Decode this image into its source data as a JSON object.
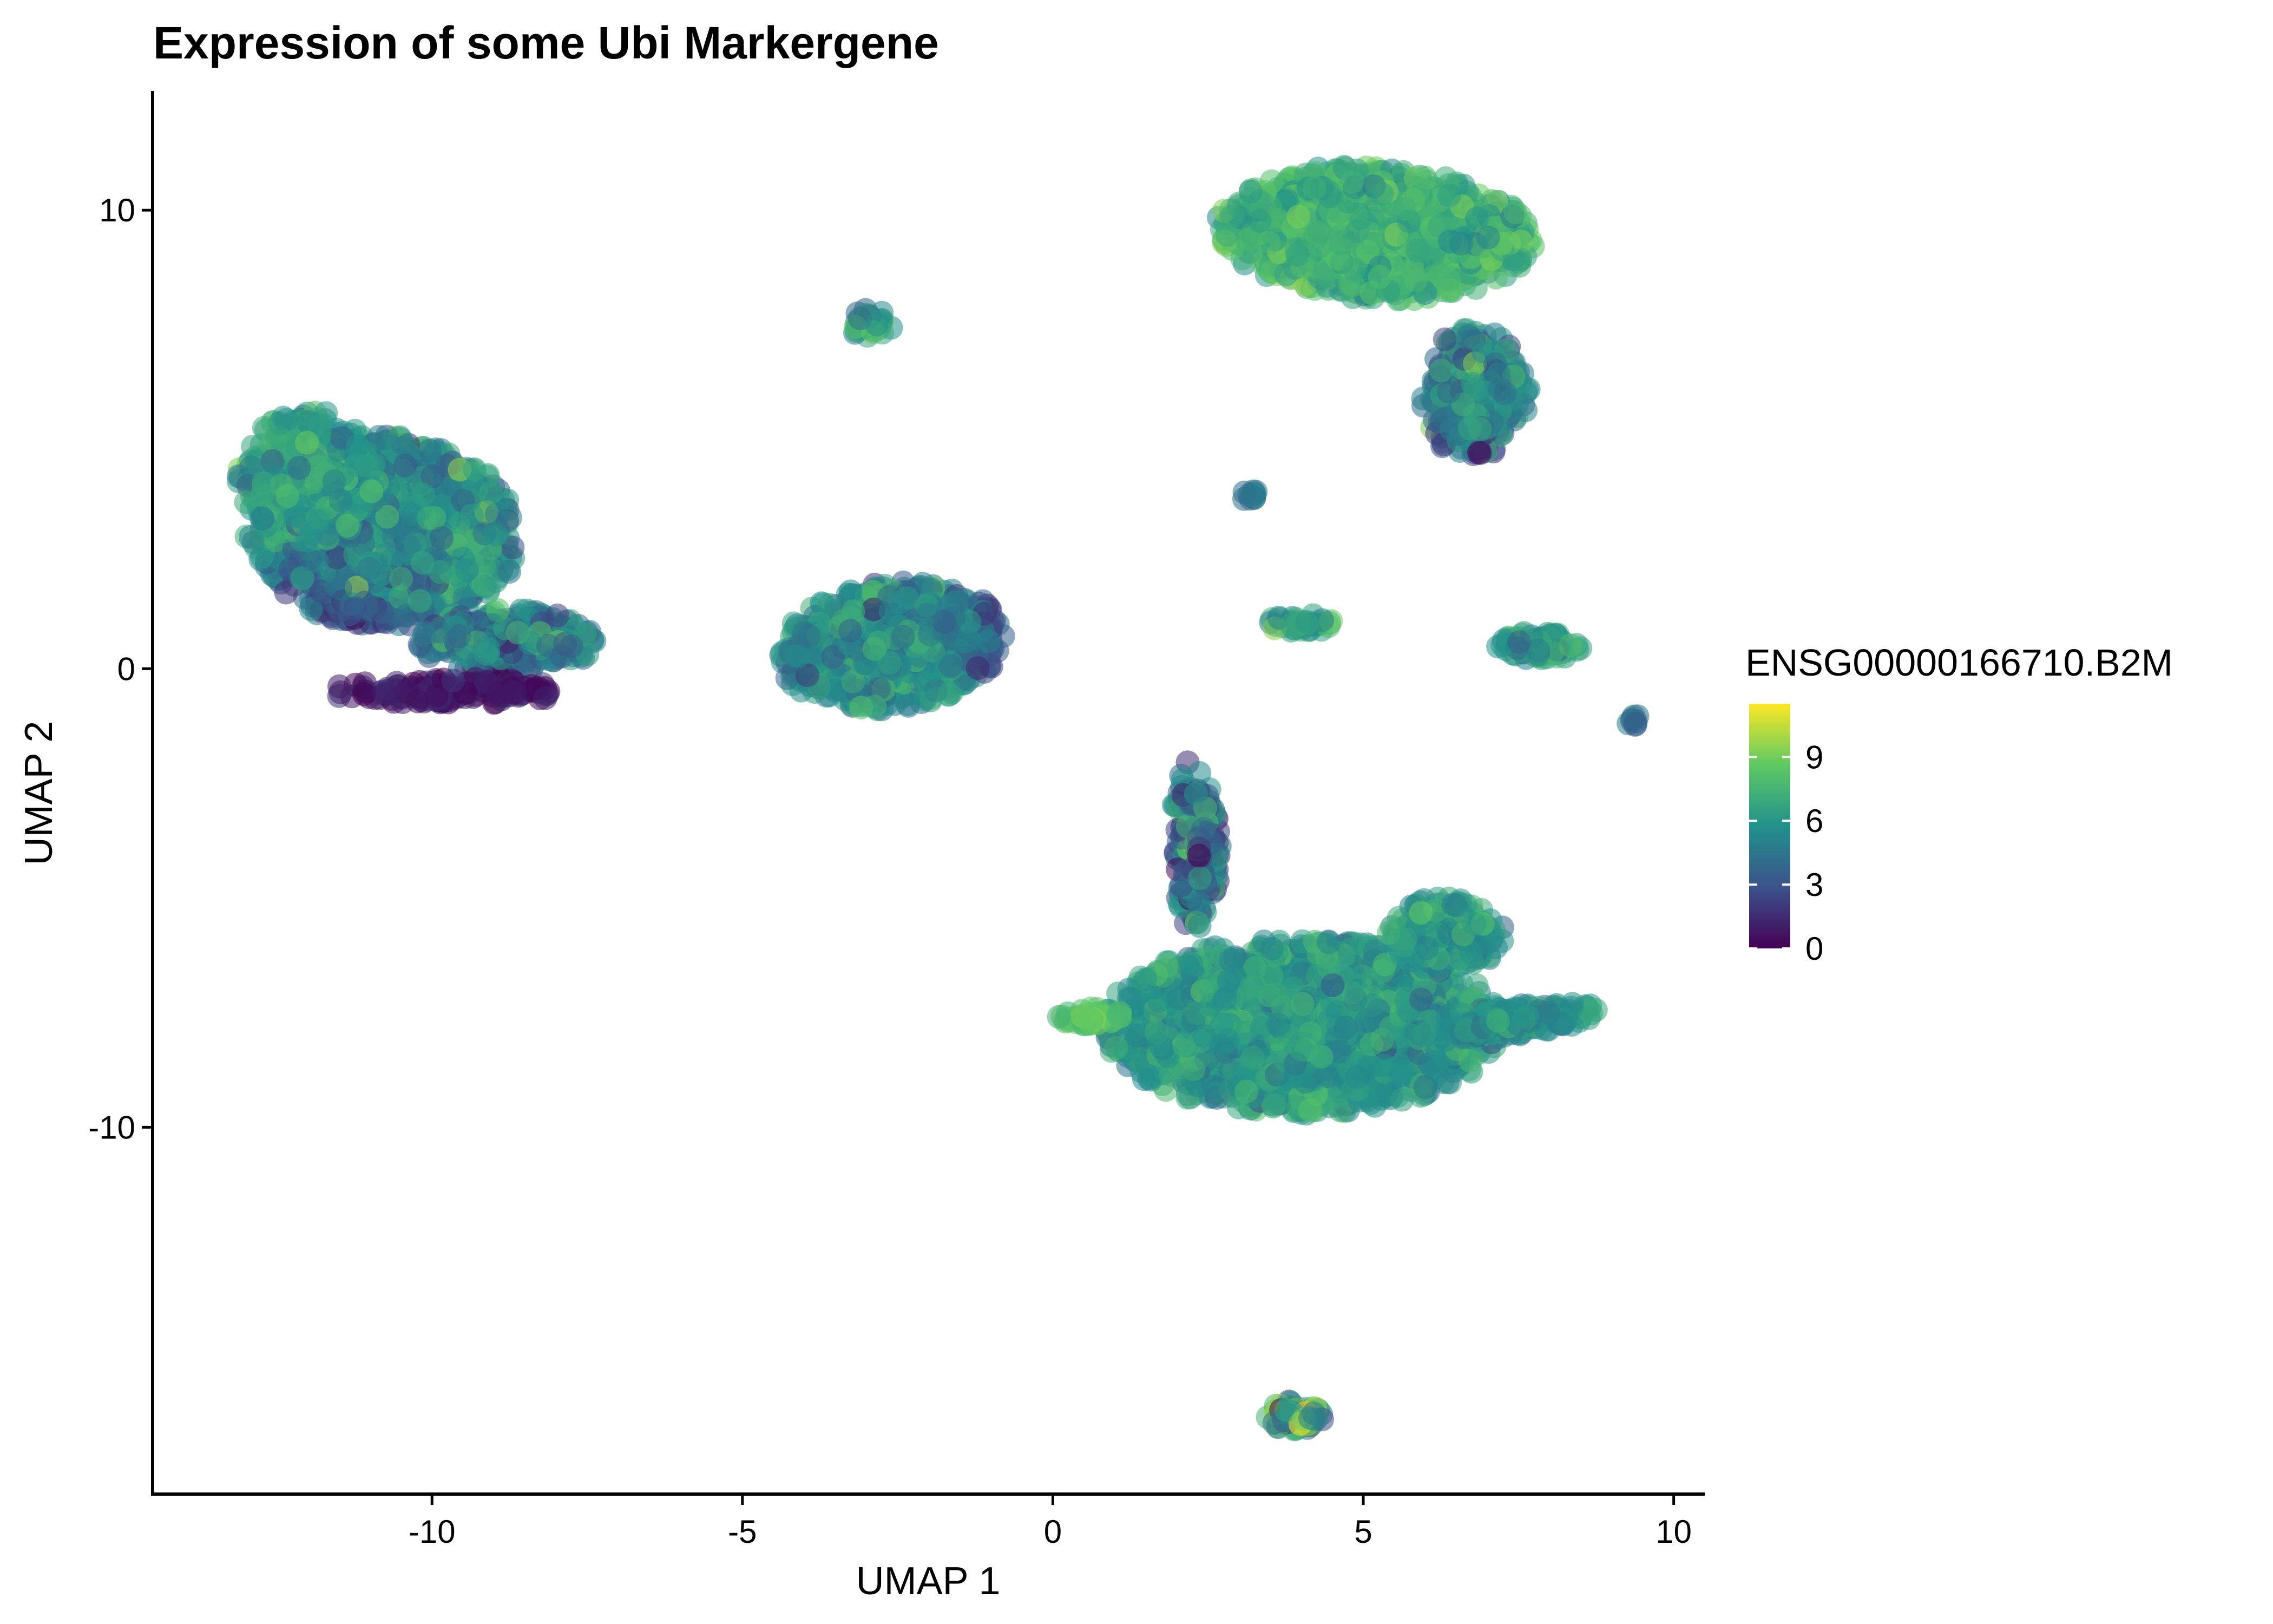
{
  "chart_data": {
    "type": "scatter",
    "title": "Expression of some Ubi Markergene",
    "xlabel": "UMAP 1",
    "ylabel": "UMAP 2",
    "xlim": [
      -14.5,
      10.5
    ],
    "ylim": [
      -18.0,
      12.6
    ],
    "xticks": [
      -10,
      -5,
      0,
      5,
      10
    ],
    "yticks": [
      -10,
      0,
      10
    ],
    "grid": false,
    "legend": {
      "title": "ENSG00000166710.B2M",
      "placement": "right",
      "ticks": [
        0,
        3,
        6,
        9
      ],
      "range": [
        0,
        11.5
      ],
      "colors": [
        "#440154",
        "#3b528b",
        "#21918c",
        "#5ec962",
        "#fde725"
      ]
    },
    "clusters": [
      {
        "x": -10.8,
        "y": 3.0,
        "sx": 1.4,
        "sy": 1.3,
        "rot": -0.4,
        "n": 1500,
        "mean": 5.6,
        "sd": 1.4,
        "low_side": "bottom"
      },
      {
        "x": -12.0,
        "y": 4.2,
        "sx": 0.7,
        "sy": 0.9,
        "rot": 0.0,
        "n": 400,
        "mean": 6.3,
        "sd": 1.1,
        "low_side": "none"
      },
      {
        "x": -8.8,
        "y": 0.6,
        "sx": 0.9,
        "sy": 0.45,
        "rot": 0.0,
        "n": 350,
        "mean": 5.0,
        "sd": 1.6,
        "low_side": "bottom"
      },
      {
        "x": -9.8,
        "y": -0.5,
        "sx": 1.2,
        "sy": 0.18,
        "rot": 0.0,
        "n": 160,
        "mean": 0.8,
        "sd": 0.6,
        "low_side": "none"
      },
      {
        "x": -2.6,
        "y": 0.5,
        "sx": 1.15,
        "sy": 0.85,
        "rot": 0.25,
        "n": 1000,
        "mean": 5.6,
        "sd": 1.3,
        "low_side": "right"
      },
      {
        "x": -2.95,
        "y": 7.5,
        "sx": 0.22,
        "sy": 0.22,
        "rot": 0.0,
        "n": 40,
        "mean": 6.5,
        "sd": 1.5,
        "low_side": "none"
      },
      {
        "x": 5.2,
        "y": 9.5,
        "sx": 1.6,
        "sy": 0.9,
        "rot": -0.1,
        "n": 1300,
        "mean": 7.3,
        "sd": 1.0,
        "low_side": "none"
      },
      {
        "x": 6.8,
        "y": 6.0,
        "sx": 0.55,
        "sy": 0.9,
        "rot": 0.0,
        "n": 350,
        "mean": 5.0,
        "sd": 1.8,
        "low_side": "bottom"
      },
      {
        "x": 3.2,
        "y": 3.8,
        "sx": 0.1,
        "sy": 0.1,
        "rot": 0.0,
        "n": 10,
        "mean": 4.5,
        "sd": 0.5,
        "low_side": "none"
      },
      {
        "x": 4.0,
        "y": 1.0,
        "sx": 0.35,
        "sy": 0.12,
        "rot": 0.0,
        "n": 40,
        "mean": 6.5,
        "sd": 1.0,
        "low_side": "none"
      },
      {
        "x": 7.8,
        "y": 0.5,
        "sx": 0.45,
        "sy": 0.2,
        "rot": 0.0,
        "n": 80,
        "mean": 6.0,
        "sd": 1.0,
        "low_side": "none"
      },
      {
        "x": 9.35,
        "y": -1.1,
        "sx": 0.08,
        "sy": 0.08,
        "rot": 0.0,
        "n": 8,
        "mean": 4.5,
        "sd": 0.5,
        "low_side": "none"
      },
      {
        "x": 2.3,
        "y": -3.8,
        "sx": 0.25,
        "sy": 1.2,
        "rot": 0.0,
        "n": 220,
        "mean": 4.5,
        "sd": 2.2,
        "low_side": "none"
      },
      {
        "x": 4.0,
        "y": -7.8,
        "sx": 2.0,
        "sy": 1.2,
        "rot": 0.0,
        "n": 2200,
        "mean": 6.1,
        "sd": 1.1,
        "low_side": "none"
      },
      {
        "x": 6.3,
        "y": -5.8,
        "sx": 0.6,
        "sy": 0.5,
        "rot": 0.0,
        "n": 250,
        "mean": 6.2,
        "sd": 1.0,
        "low_side": "none"
      },
      {
        "x": 7.3,
        "y": -7.7,
        "sx": 1.0,
        "sy": 0.22,
        "rot": 0.15,
        "n": 200,
        "mean": 5.6,
        "sd": 1.0,
        "low_side": "none"
      },
      {
        "x": 0.6,
        "y": -7.6,
        "sx": 0.35,
        "sy": 0.12,
        "rot": 0.0,
        "n": 40,
        "mean": 8.3,
        "sd": 0.6,
        "low_side": "none"
      },
      {
        "x": 3.9,
        "y": -16.3,
        "sx": 0.28,
        "sy": 0.22,
        "rot": 0.0,
        "n": 90,
        "mean": 7.0,
        "sd": 3.0,
        "low_side": "none"
      }
    ]
  }
}
